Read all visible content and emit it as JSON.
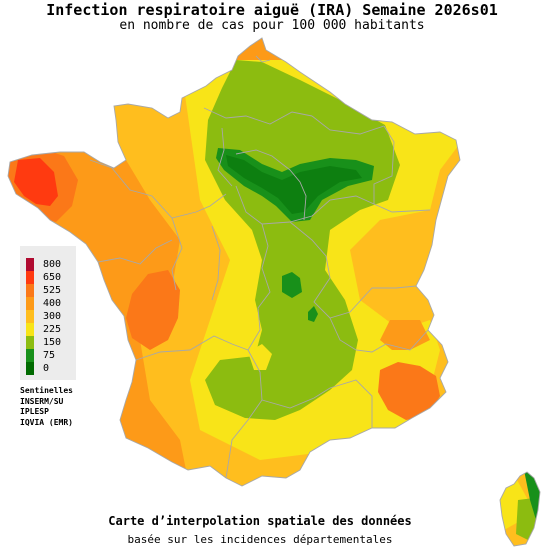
{
  "header": {
    "title": "Infection respiratoire aiguë (IRA) Semaine 2026s01",
    "subtitle": "en nombre de cas pour 100 000 habitants"
  },
  "legend": {
    "items": [
      {
        "label": "800",
        "color": "#b00a30"
      },
      {
        "label": "650",
        "color": "#ff3a10"
      },
      {
        "label": "525",
        "color": "#fb7818"
      },
      {
        "label": "400",
        "color": "#fd9a18"
      },
      {
        "label": "300",
        "color": "#ffbe1e"
      },
      {
        "label": "225",
        "color": "#f8e418"
      },
      {
        "label": "150",
        "color": "#8cbc10"
      },
      {
        "label": "75",
        "color": "#18901a"
      },
      {
        "label": "0",
        "color": "#006a00"
      }
    ]
  },
  "sources": {
    "heading": "Sentinelles",
    "lines": [
      "INSERM/SU",
      "IPLESP",
      "IQVIA (EMR)"
    ]
  },
  "footer": {
    "line1": "Carte d’interpolation spatiale des données",
    "line2": "basée sur les incidences départementales"
  }
}
